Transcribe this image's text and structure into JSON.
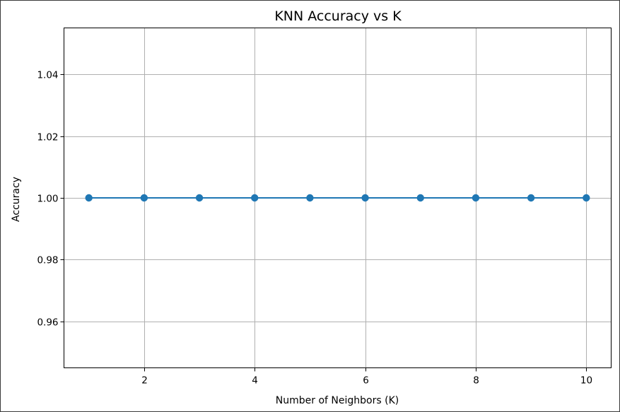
{
  "chart_data": {
    "type": "line",
    "title": "KNN Accuracy vs K",
    "xlabel": "Number of Neighbors (K)",
    "ylabel": "Accuracy",
    "x": [
      1,
      2,
      3,
      4,
      5,
      6,
      7,
      8,
      9,
      10
    ],
    "series": [
      {
        "values": [
          1.0,
          1.0,
          1.0,
          1.0,
          1.0,
          1.0,
          1.0,
          1.0,
          1.0,
          1.0
        ],
        "color": "#1f77b4",
        "marker": "circle"
      }
    ],
    "xlim": [
      0.55,
      10.45
    ],
    "ylim": [
      0.945,
      1.055
    ],
    "xticks": [
      2,
      4,
      6,
      8,
      10
    ],
    "xtick_labels": [
      "2",
      "4",
      "6",
      "8",
      "10"
    ],
    "yticks": [
      0.96,
      0.98,
      1.0,
      1.02,
      1.04
    ],
    "ytick_labels": [
      "0.96",
      "0.98",
      "1.00",
      "1.02",
      "1.04"
    ],
    "grid": true,
    "legend": "none"
  }
}
